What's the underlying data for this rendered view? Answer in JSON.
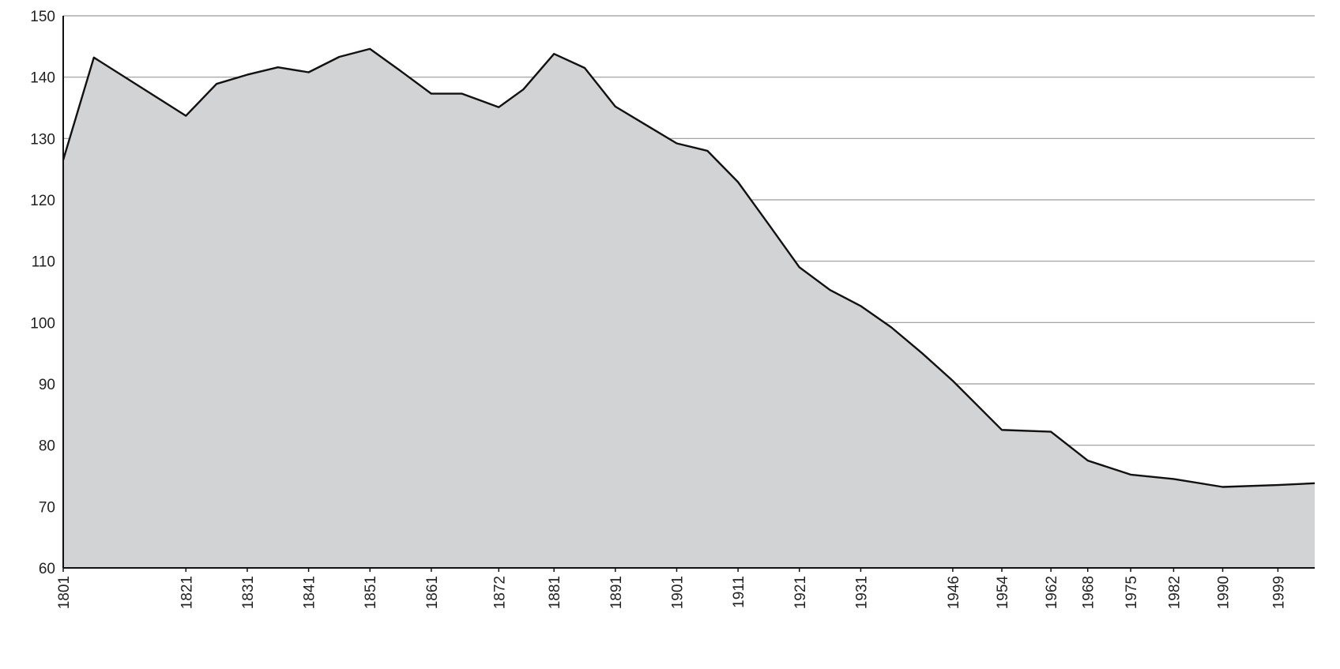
{
  "chart_data": {
    "type": "area",
    "title": "",
    "xlabel": "",
    "ylabel": "",
    "ylim": [
      60,
      150
    ],
    "xlim": [
      1801,
      2005
    ],
    "y_ticks": [
      60,
      70,
      80,
      90,
      100,
      110,
      120,
      130,
      140,
      150
    ],
    "x_ticks": [
      1801,
      1821,
      1831,
      1841,
      1851,
      1861,
      1872,
      1881,
      1891,
      1901,
      1911,
      1921,
      1931,
      1946,
      1954,
      1962,
      1968,
      1975,
      1982,
      1990,
      1999
    ],
    "grid": "horizontal",
    "legend": "none",
    "colors": {
      "fill": "#d2d3d5",
      "line": "#111111",
      "grid": "#9a9a9a"
    },
    "series": [
      {
        "x": [
          1801,
          1806,
          1821,
          1826,
          1831,
          1836,
          1841,
          1846,
          1851,
          1856,
          1861,
          1866,
          1872,
          1876,
          1881,
          1886,
          1891,
          1896,
          1901,
          1906,
          1911,
          1916,
          1921,
          1926,
          1931,
          1936,
          1941,
          1946,
          1954,
          1962,
          1968,
          1975,
          1982,
          1990,
          1999,
          2005
        ],
        "values": [
          126.5,
          143.2,
          133.7,
          138.9,
          140.4,
          141.6,
          140.8,
          143.3,
          144.6,
          141.0,
          137.3,
          137.3,
          135.1,
          138.0,
          143.8,
          141.5,
          135.2,
          132.2,
          129.2,
          128.0,
          122.9,
          116.0,
          109.0,
          105.3,
          102.7,
          99.2,
          95.0,
          90.5,
          82.5,
          82.2,
          77.5,
          75.2,
          74.5,
          73.2,
          73.5,
          73.8
        ]
      }
    ]
  }
}
